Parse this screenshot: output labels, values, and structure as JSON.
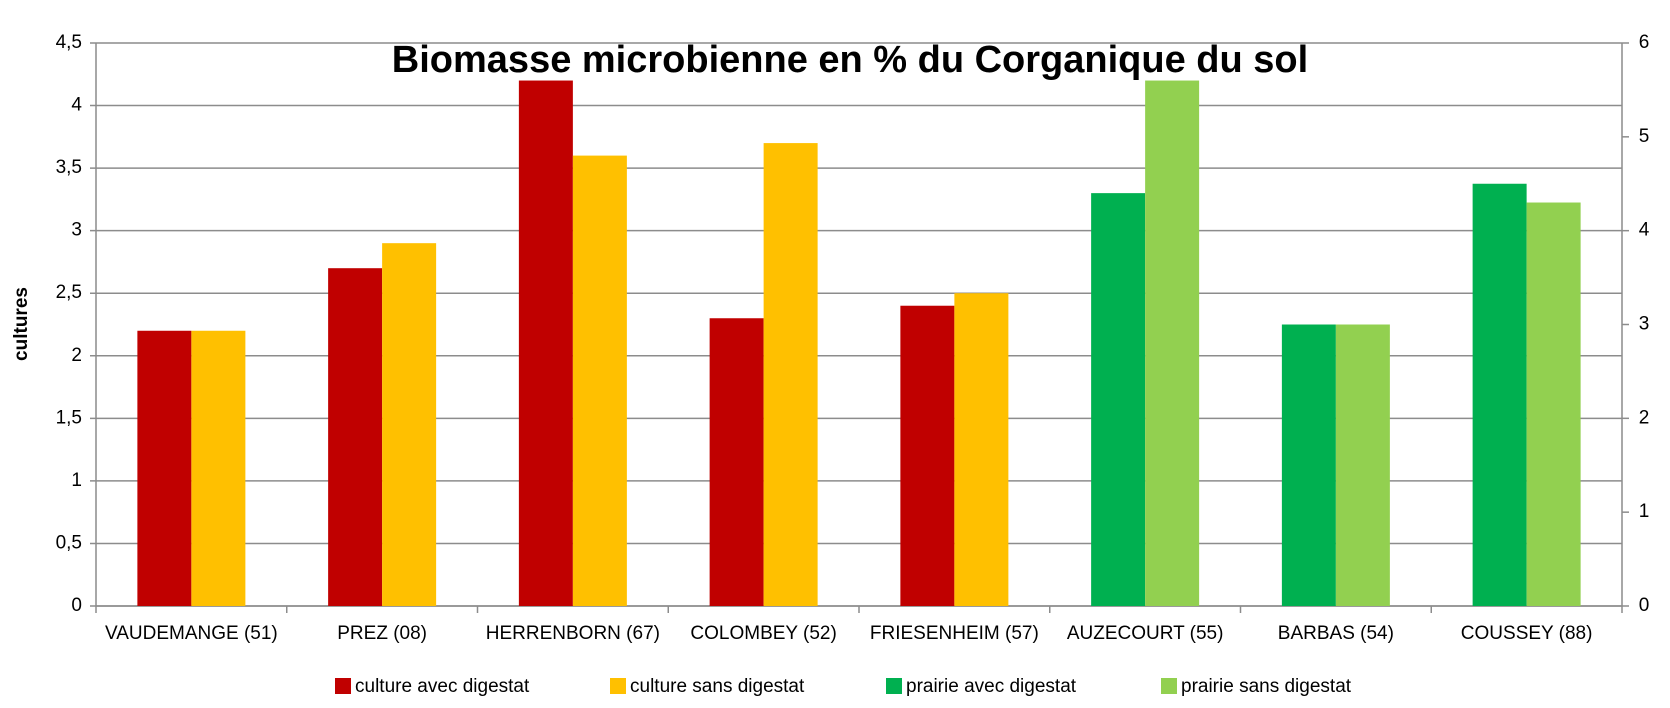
{
  "chart_data": {
    "type": "bar",
    "title": "Biomasse microbienne en % du Corganique du sol",
    "ylabel": "cultures",
    "categories": [
      "VAUDEMANGE (51)",
      "PREZ (08)",
      "HERRENBORN (67)",
      "COLOMBEY (52)",
      "FRIESENHEIM (57)",
      "AUZECOURT (55)",
      "BARBAS (54)",
      "COUSSEY (88)"
    ],
    "series": [
      {
        "name": "culture avec digestat",
        "color": "#c00000",
        "values": [
          2.2,
          2.7,
          4.2,
          2.3,
          2.4,
          null,
          null,
          null
        ]
      },
      {
        "name": "culture sans digestat",
        "color": "#ffc000",
        "values": [
          2.2,
          2.9,
          3.6,
          3.7,
          2.5,
          null,
          null,
          null
        ]
      },
      {
        "name": "prairie avec digestat",
        "color": "#00b050",
        "axis": "y2",
        "values": [
          null,
          null,
          null,
          null,
          null,
          4.4,
          3.0,
          4.5
        ]
      },
      {
        "name": "prairie sans digestat",
        "color": "#92d050",
        "axis": "y2",
        "values": [
          null,
          null,
          null,
          null,
          null,
          5.6,
          3.0,
          4.3
        ]
      }
    ],
    "ylim": [
      0,
      4.5
    ],
    "yticks": [
      0,
      {
        "value": 0.5,
        "label": "0,5"
      },
      1,
      {
        "value": 1.5,
        "label": "1,5"
      },
      2,
      {
        "value": 2.5,
        "label": "2,5"
      },
      3,
      {
        "value": 3.5,
        "label": "3,5"
      },
      4,
      {
        "value": 4.5,
        "label": "4,5"
      }
    ],
    "y2lim": [
      0,
      6
    ],
    "y2ticks": [
      0,
      1,
      2,
      3,
      4,
      5,
      6
    ],
    "grid": true,
    "legend": "bottom"
  }
}
